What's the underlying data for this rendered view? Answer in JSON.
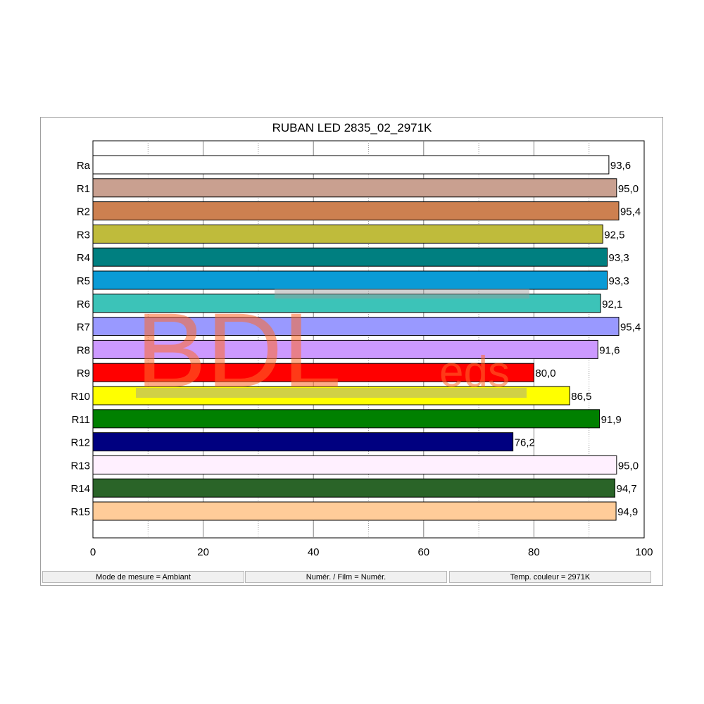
{
  "window": {
    "status": {
      "measure_mode": "Mode de mesure = Ambiant",
      "num_film": "Numér. / Film = Numér.",
      "color_temp": "Temp. couleur = 2971K"
    }
  },
  "watermark": {
    "big": "BDL",
    "small": "eds"
  },
  "chart_data": {
    "type": "bar",
    "orientation": "horizontal",
    "title": "RUBAN LED 2835_02_2971K",
    "categories": [
      "Ra",
      "R1",
      "R2",
      "R3",
      "R4",
      "R5",
      "R6",
      "R7",
      "R8",
      "R9",
      "R10",
      "R11",
      "R12",
      "R13",
      "R14",
      "R15"
    ],
    "values": [
      93.6,
      95.0,
      95.4,
      92.5,
      93.3,
      93.3,
      92.1,
      95.4,
      91.6,
      80.0,
      86.5,
      91.9,
      76.2,
      95.0,
      94.7,
      94.9
    ],
    "value_labels": [
      "93,6",
      "95,0",
      "95,4",
      "92,5",
      "93,3",
      "93,3",
      "92,1",
      "95,4",
      "91,6",
      "80,0",
      "86,5",
      "91,9",
      "76,2",
      "95,0",
      "94,7",
      "94,9"
    ],
    "colors": [
      "#ffffff",
      "#c9a090",
      "#cd8050",
      "#bfbb3b",
      "#007f80",
      "#0a9bd6",
      "#3cc3b8",
      "#9999ff",
      "#cc99ff",
      "#ff0000",
      "#ffff00",
      "#008000",
      "#000080",
      "#fff0ff",
      "#2a6428",
      "#ffcc99"
    ],
    "xlim": [
      0,
      100
    ],
    "xticks": [
      0,
      20,
      40,
      60,
      80,
      100
    ],
    "xtick_labels": [
      "0",
      "20",
      "40",
      "60",
      "80",
      "100"
    ],
    "grid": true
  }
}
